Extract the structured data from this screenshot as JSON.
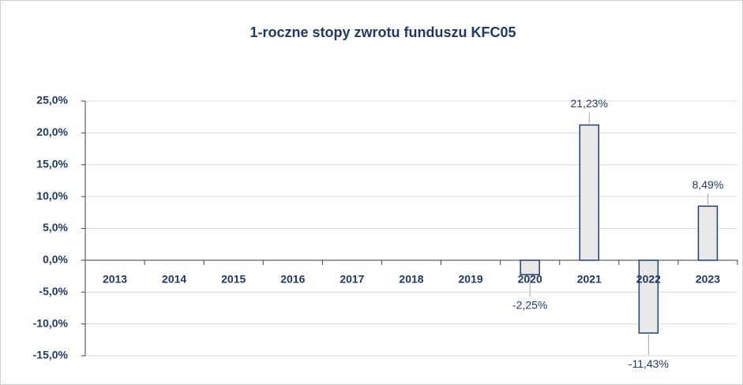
{
  "chart_data": {
    "type": "bar",
    "title": "1-roczne stopy zwrotu funduszu KFC05",
    "categories": [
      "2013",
      "2014",
      "2015",
      "2016",
      "2017",
      "2018",
      "2019",
      "2020",
      "2021",
      "2022",
      "2023"
    ],
    "values": [
      null,
      null,
      null,
      null,
      null,
      null,
      null,
      -2.25,
      21.23,
      -11.43,
      8.49
    ],
    "value_labels": [
      null,
      null,
      null,
      null,
      null,
      null,
      null,
      "-2,25%",
      "21,23%",
      "-11,43%",
      "8,49%"
    ],
    "color": "#e8e8e8",
    "edge_color": "#1f3f73",
    "ylim": [
      -15,
      25
    ],
    "yticks": [
      {
        "value": -15,
        "label": "-15,0%"
      },
      {
        "value": -10,
        "label": "-10,0%"
      },
      {
        "value": -5,
        "label": "-5,0%"
      },
      {
        "value": 0,
        "label": "0,0%"
      },
      {
        "value": 5,
        "label": "5,0%"
      },
      {
        "value": 10,
        "label": "10,0%"
      },
      {
        "value": 15,
        "label": "15,0%"
      },
      {
        "value": 20,
        "label": "20,0%"
      },
      {
        "value": 25,
        "label": "25,0%"
      }
    ],
    "grid": true
  }
}
